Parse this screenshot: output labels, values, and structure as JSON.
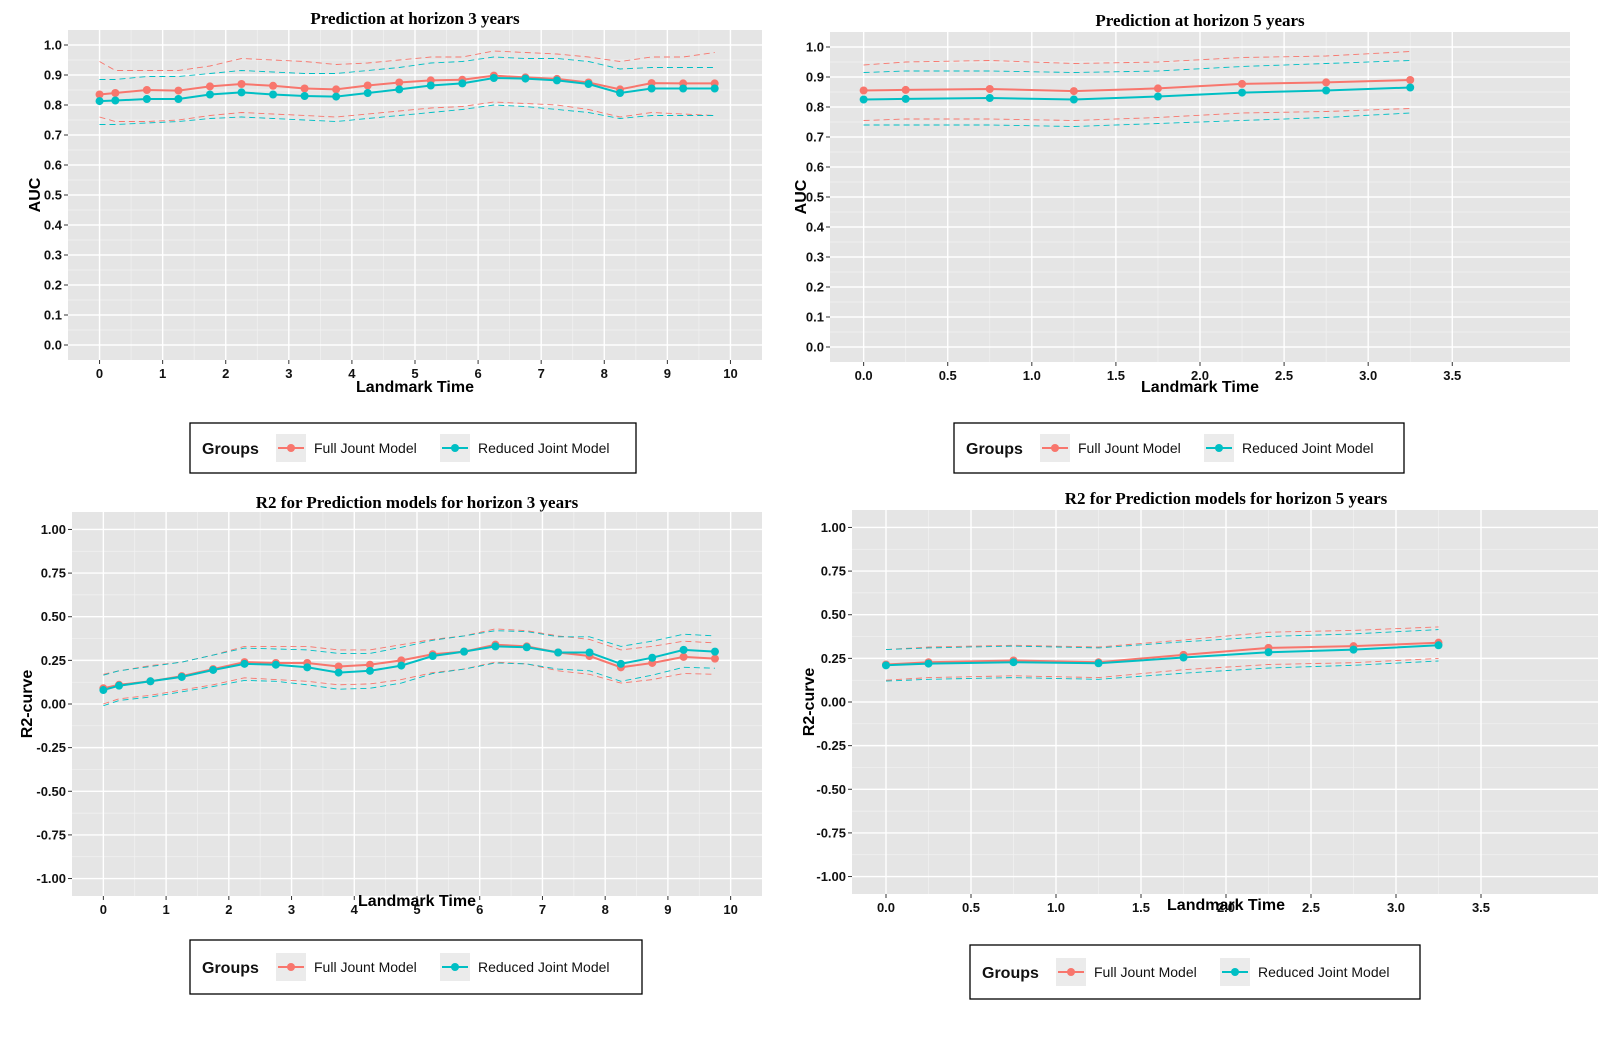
{
  "legend": {
    "title": "Groups",
    "items": [
      {
        "label": "Full Jount Model",
        "color": "#F8766D"
      },
      {
        "label": "Reduced Joint Model",
        "color": "#00BFC4"
      }
    ]
  },
  "chart_data": [
    {
      "type": "line",
      "title": "Prediction at horizon 3 years",
      "xlabel": "Landmark Time",
      "ylabel": "AUC",
      "xlim": [
        -0.5,
        10.5
      ],
      "ylim": [
        -0.05,
        1.05
      ],
      "xticks": [
        0,
        1,
        2,
        3,
        4,
        5,
        6,
        7,
        8,
        9,
        10
      ],
      "xtick_labels": [
        "0",
        "1",
        "2",
        "3",
        "4",
        "5",
        "6",
        "7",
        "8",
        "9",
        "10"
      ],
      "yticks": [
        0,
        0.1,
        0.2,
        0.3,
        0.4,
        0.5,
        0.6,
        0.7,
        0.8,
        0.9,
        1.0
      ],
      "ytick_labels": [
        "0.0",
        "0.1",
        "0.2",
        "0.3",
        "0.4",
        "0.5",
        "0.6",
        "0.7",
        "0.8",
        "0.9",
        "1.0"
      ],
      "grid": true,
      "legend_position": "bottom",
      "x": [
        0,
        0.25,
        0.75,
        1.25,
        1.75,
        2.25,
        2.75,
        3.25,
        3.75,
        4.25,
        4.75,
        5.25,
        5.75,
        6.25,
        6.75,
        7.25,
        7.75,
        8.25,
        8.75,
        9.25,
        9.75
      ],
      "series": [
        {
          "name": "Full Jount Model",
          "color": "#F8766D",
          "values": [
            0.835,
            0.84,
            0.85,
            0.848,
            0.862,
            0.87,
            0.864,
            0.855,
            0.852,
            0.865,
            0.875,
            0.882,
            0.884,
            0.898,
            0.892,
            0.887,
            0.875,
            0.852,
            0.873,
            0.872,
            0.872
          ],
          "lower": [
            0.76,
            0.745,
            0.745,
            0.75,
            0.765,
            0.775,
            0.77,
            0.765,
            0.76,
            0.77,
            0.78,
            0.79,
            0.795,
            0.81,
            0.805,
            0.8,
            0.785,
            0.76,
            0.775,
            0.77,
            0.765
          ],
          "upper": [
            0.945,
            0.915,
            0.915,
            0.915,
            0.93,
            0.955,
            0.95,
            0.945,
            0.935,
            0.94,
            0.95,
            0.96,
            0.96,
            0.98,
            0.975,
            0.97,
            0.96,
            0.945,
            0.96,
            0.96,
            0.975
          ]
        },
        {
          "name": "Reduced Joint Model",
          "color": "#00BFC4",
          "values": [
            0.813,
            0.815,
            0.82,
            0.82,
            0.835,
            0.842,
            0.835,
            0.83,
            0.828,
            0.84,
            0.852,
            0.865,
            0.872,
            0.89,
            0.888,
            0.882,
            0.87,
            0.84,
            0.855,
            0.855,
            0.855
          ],
          "lower": [
            0.735,
            0.735,
            0.74,
            0.745,
            0.755,
            0.76,
            0.755,
            0.75,
            0.745,
            0.755,
            0.765,
            0.775,
            0.785,
            0.8,
            0.795,
            0.785,
            0.775,
            0.755,
            0.765,
            0.765,
            0.765
          ],
          "upper": [
            0.885,
            0.885,
            0.895,
            0.895,
            0.905,
            0.915,
            0.91,
            0.905,
            0.905,
            0.915,
            0.925,
            0.94,
            0.945,
            0.96,
            0.955,
            0.955,
            0.945,
            0.92,
            0.925,
            0.925,
            0.925
          ]
        }
      ]
    },
    {
      "type": "line",
      "title": "Prediction at horizon 5 years",
      "xlabel": "Landmark Time",
      "ylabel": "AUC",
      "xlim": [
        -0.2,
        4.2
      ],
      "ylim": [
        -0.05,
        1.05
      ],
      "xticks": [
        0,
        0.5,
        1.0,
        1.5,
        2.0,
        2.5,
        3.0,
        3.5
      ],
      "xtick_labels": [
        "0.0",
        "0.5",
        "1.0",
        "1.5",
        "2.0",
        "2.5",
        "3.0",
        "3.5"
      ],
      "yticks": [
        0,
        0.1,
        0.2,
        0.3,
        0.4,
        0.5,
        0.6,
        0.7,
        0.8,
        0.9,
        1.0
      ],
      "ytick_labels": [
        "0.0",
        "0.1",
        "0.2",
        "0.3",
        "0.4",
        "0.5",
        "0.6",
        "0.7",
        "0.8",
        "0.9",
        "1.0"
      ],
      "grid": true,
      "legend_position": "bottom",
      "x": [
        0,
        0.25,
        0.75,
        1.25,
        1.75,
        2.25,
        2.75,
        3.25
      ],
      "series": [
        {
          "name": "Full Jount Model",
          "color": "#F8766D",
          "values": [
            0.855,
            0.857,
            0.86,
            0.853,
            0.862,
            0.877,
            0.882,
            0.89
          ],
          "lower": [
            0.755,
            0.76,
            0.76,
            0.755,
            0.765,
            0.78,
            0.785,
            0.795
          ],
          "upper": [
            0.94,
            0.95,
            0.955,
            0.945,
            0.95,
            0.965,
            0.97,
            0.985
          ]
        },
        {
          "name": "Reduced Joint Model",
          "color": "#00BFC4",
          "values": [
            0.825,
            0.827,
            0.83,
            0.825,
            0.835,
            0.848,
            0.855,
            0.865
          ],
          "lower": [
            0.74,
            0.74,
            0.74,
            0.735,
            0.745,
            0.755,
            0.765,
            0.78
          ],
          "upper": [
            0.915,
            0.92,
            0.92,
            0.915,
            0.92,
            0.935,
            0.945,
            0.955
          ]
        }
      ]
    },
    {
      "type": "line",
      "title": "R2 for Prediction models for horizon 3 years",
      "xlabel": "Landmark Time",
      "ylabel": "R2-curve",
      "xlim": [
        -0.5,
        10.5
      ],
      "ylim": [
        -1.1,
        1.1
      ],
      "xticks": [
        0,
        1,
        2,
        3,
        4,
        5,
        6,
        7,
        8,
        9,
        10
      ],
      "xtick_labels": [
        "0",
        "1",
        "2",
        "3",
        "4",
        "5",
        "6",
        "7",
        "8",
        "9",
        "10"
      ],
      "yticks": [
        -1,
        -0.75,
        -0.5,
        -0.25,
        0,
        0.25,
        0.5,
        0.75,
        1.0
      ],
      "ytick_labels": [
        "-1.00",
        "-0.75",
        "-0.50",
        "-0.25",
        "0.00",
        "0.25",
        "0.50",
        "0.75",
        "1.00"
      ],
      "grid": true,
      "legend_position": "bottom",
      "x": [
        0,
        0.25,
        0.75,
        1.25,
        1.75,
        2.25,
        2.75,
        3.25,
        3.75,
        4.25,
        4.75,
        5.25,
        5.75,
        6.25,
        6.75,
        7.25,
        7.75,
        8.25,
        8.75,
        9.25,
        9.75
      ],
      "series": [
        {
          "name": "Full Jount Model",
          "color": "#F8766D",
          "values": [
            0.09,
            0.11,
            0.13,
            0.16,
            0.2,
            0.24,
            0.235,
            0.235,
            0.215,
            0.225,
            0.25,
            0.285,
            0.3,
            0.34,
            0.33,
            0.295,
            0.275,
            0.21,
            0.235,
            0.27,
            0.26
          ],
          "lower": [
            0.0,
            0.03,
            0.05,
            0.08,
            0.11,
            0.15,
            0.14,
            0.13,
            0.11,
            0.115,
            0.14,
            0.18,
            0.2,
            0.24,
            0.23,
            0.19,
            0.17,
            0.12,
            0.14,
            0.175,
            0.17
          ],
          "upper": [
            0.17,
            0.19,
            0.22,
            0.24,
            0.28,
            0.33,
            0.33,
            0.33,
            0.31,
            0.31,
            0.34,
            0.37,
            0.39,
            0.43,
            0.42,
            0.39,
            0.37,
            0.31,
            0.33,
            0.36,
            0.35
          ]
        },
        {
          "name": "Reduced Joint Model",
          "color": "#00BFC4",
          "values": [
            0.08,
            0.105,
            0.13,
            0.155,
            0.195,
            0.23,
            0.225,
            0.21,
            0.18,
            0.19,
            0.22,
            0.275,
            0.3,
            0.33,
            0.325,
            0.295,
            0.295,
            0.23,
            0.265,
            0.31,
            0.3
          ],
          "lower": [
            -0.01,
            0.02,
            0.04,
            0.07,
            0.1,
            0.135,
            0.13,
            0.11,
            0.085,
            0.09,
            0.12,
            0.175,
            0.2,
            0.235,
            0.23,
            0.2,
            0.19,
            0.13,
            0.165,
            0.21,
            0.205
          ],
          "upper": [
            0.165,
            0.19,
            0.215,
            0.24,
            0.28,
            0.32,
            0.315,
            0.31,
            0.29,
            0.29,
            0.325,
            0.365,
            0.39,
            0.42,
            0.415,
            0.385,
            0.385,
            0.33,
            0.36,
            0.4,
            0.39
          ]
        }
      ]
    },
    {
      "type": "line",
      "title": "R2 for Prediction models for horizon 5 years",
      "xlabel": "Landmark Time",
      "ylabel": "R2-curve",
      "xlim": [
        -0.2,
        4.2
      ],
      "ylim": [
        -1.1,
        1.1
      ],
      "xticks": [
        0,
        0.5,
        1.0,
        1.5,
        2.0,
        2.5,
        3.0,
        3.5
      ],
      "xtick_labels": [
        "0.0",
        "0.5",
        "1.0",
        "1.5",
        "2.0",
        "2.5",
        "3.0",
        "3.5"
      ],
      "yticks": [
        -1,
        -0.75,
        -0.5,
        -0.25,
        0,
        0.25,
        0.5,
        0.75,
        1.0
      ],
      "ytick_labels": [
        "-1.00",
        "-0.75",
        "-0.50",
        "-0.25",
        "0.00",
        "0.25",
        "0.50",
        "0.75",
        "1.00"
      ],
      "grid": true,
      "legend_position": "bottom",
      "x": [
        0,
        0.25,
        0.75,
        1.25,
        1.75,
        2.25,
        2.75,
        3.25
      ],
      "series": [
        {
          "name": "Full Jount Model",
          "color": "#F8766D",
          "values": [
            0.215,
            0.228,
            0.238,
            0.228,
            0.27,
            0.31,
            0.32,
            0.34
          ],
          "lower": [
            0.125,
            0.14,
            0.15,
            0.14,
            0.185,
            0.215,
            0.225,
            0.25
          ],
          "upper": [
            0.3,
            0.315,
            0.325,
            0.315,
            0.355,
            0.4,
            0.41,
            0.43
          ]
        },
        {
          "name": "Reduced Joint Model",
          "color": "#00BFC4",
          "values": [
            0.21,
            0.22,
            0.228,
            0.222,
            0.255,
            0.285,
            0.3,
            0.325
          ],
          "lower": [
            0.12,
            0.13,
            0.14,
            0.13,
            0.165,
            0.195,
            0.21,
            0.235
          ],
          "upper": [
            0.3,
            0.31,
            0.32,
            0.31,
            0.345,
            0.375,
            0.39,
            0.415
          ]
        }
      ]
    }
  ]
}
